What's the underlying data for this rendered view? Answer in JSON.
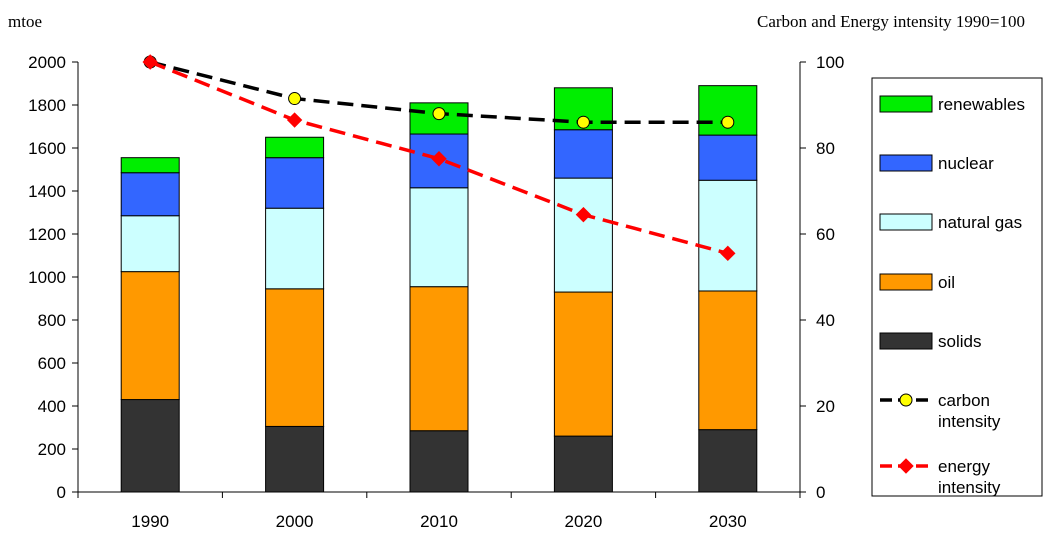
{
  "chart_data": {
    "type": "bar",
    "subtype": "stacked bar with secondary-axis lines",
    "title": "",
    "left_axis_label": "mtoe",
    "right_axis_label": "Carbon and Energy intensity 1990=100",
    "categories": [
      "1990",
      "2000",
      "2010",
      "2020",
      "2030"
    ],
    "ylim": [
      0,
      2000
    ],
    "yticks": [
      "0",
      "200",
      "400",
      "600",
      "800",
      "1000",
      "1200",
      "1400",
      "1600",
      "1800",
      "2000"
    ],
    "y2lim": [
      0,
      100
    ],
    "y2ticks": [
      "0",
      "20",
      "40",
      "60",
      "80",
      "100"
    ],
    "grid": false,
    "legend_position": "right",
    "series": [
      {
        "name": "solids",
        "color": "#333333",
        "values": [
          430,
          305,
          285,
          260,
          290
        ]
      },
      {
        "name": "oil",
        "color": "#ff9900",
        "values": [
          595,
          640,
          670,
          670,
          645
        ]
      },
      {
        "name": "natural gas",
        "color": "#ccffff",
        "values": [
          260,
          375,
          460,
          530,
          515
        ]
      },
      {
        "name": "nuclear",
        "color": "#3366ff",
        "values": [
          200,
          235,
          250,
          225,
          210
        ]
      },
      {
        "name": "renewables",
        "color": "#00ee00",
        "values": [
          70,
          95,
          145,
          195,
          230
        ]
      }
    ],
    "lines": [
      {
        "name": "carbon\nintensity",
        "color": "#000000",
        "marker": "circle",
        "marker_fill": "#ffff00",
        "axis": "right",
        "values": [
          100,
          91.5,
          88,
          86,
          86
        ]
      },
      {
        "name": "energy\nintensity",
        "color": "#ff0000",
        "marker": "diamond",
        "marker_fill": "#ff0000",
        "axis": "right",
        "values": [
          100,
          86.5,
          77.5,
          64.5,
          55.5
        ]
      }
    ]
  }
}
